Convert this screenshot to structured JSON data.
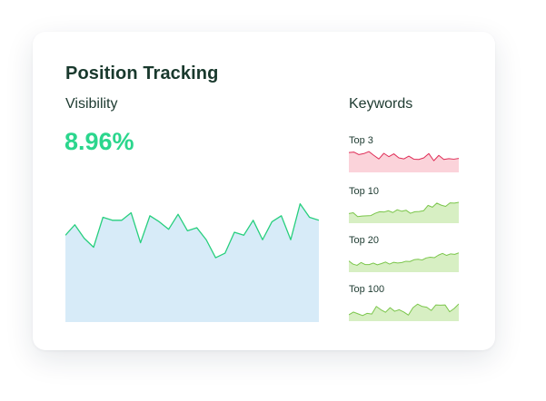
{
  "card": {
    "title": "Position Tracking",
    "visibility_label": "Visibility",
    "visibility_value": "8.96%",
    "keywords_label": "Keywords"
  },
  "colors": {
    "accent_green": "#2bd68d",
    "area_fill": "#d7ebf8",
    "line_green": "#27cf7e",
    "spark_red_line": "#df2d57",
    "spark_red_fill": "#fbd3da",
    "spark_green_line": "#7bc64b",
    "spark_green_fill": "#d7efc3"
  },
  "chart_data": [
    {
      "type": "area",
      "ylim": [
        0,
        100
      ],
      "values": [
        58,
        65,
        56,
        50,
        70,
        68,
        68,
        73,
        53,
        71,
        67,
        62,
        72,
        61,
        63,
        55,
        43,
        46,
        60,
        58,
        68,
        55,
        67,
        71,
        55,
        79,
        70,
        68
      ]
    },
    {
      "type": "area",
      "title": "Top 3",
      "ylim": [
        0,
        100
      ],
      "values": [
        78,
        80,
        70,
        74,
        82,
        67,
        53,
        75,
        62,
        73,
        57,
        53,
        64,
        52,
        51,
        57,
        74,
        46,
        67,
        51,
        54,
        52,
        55
      ]
    },
    {
      "type": "area",
      "title": "Top 10",
      "ylim": [
        0,
        100
      ],
      "values": [
        38,
        41,
        26,
        28,
        29,
        30,
        39,
        45,
        44,
        49,
        42,
        53,
        47,
        51,
        39,
        45,
        46,
        49,
        70,
        63,
        79,
        71,
        66,
        80,
        79,
        82
      ]
    },
    {
      "type": "area",
      "title": "Top 20",
      "ylim": [
        0,
        100
      ],
      "values": [
        44,
        32,
        27,
        38,
        30,
        30,
        36,
        29,
        34,
        40,
        32,
        39,
        36,
        38,
        43,
        42,
        49,
        51,
        48,
        56,
        59,
        57,
        67,
        74,
        66,
        72,
        70,
        76
      ]
    },
    {
      "type": "area",
      "title": "Top 100",
      "ylim": [
        0,
        100
      ],
      "values": [
        25,
        36,
        29,
        22,
        31,
        28,
        58,
        45,
        35,
        53,
        39,
        45,
        36,
        24,
        53,
        67,
        58,
        55,
        42,
        64,
        63,
        64,
        37,
        50,
        68
      ]
    }
  ]
}
